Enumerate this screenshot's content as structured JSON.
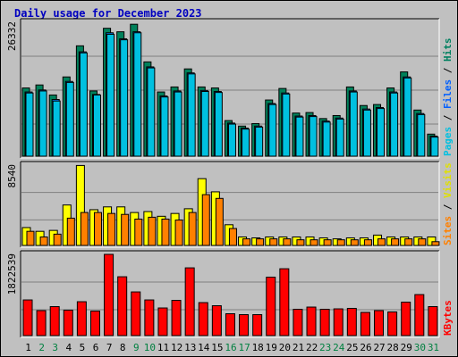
{
  "title": "Daily usage for December 2023",
  "colors": {
    "background": "#c0c0c0",
    "panel": "#c0c0c0",
    "title": "#0000c0",
    "pages": "#00c0e0",
    "files": "#0080ff",
    "hits": "#00805a",
    "visits": "#ffff00",
    "sites": "#ff8000",
    "kbytes": "#ff0000",
    "label_pages": "#00c0e0",
    "label_files": "#0060ff",
    "label_hits": "#008060",
    "label_sites": "#ff8000",
    "label_visits": "#e0e000",
    "label_kbytes": "#ff0000",
    "day_weekday": "#000000",
    "day_weekend": "#008040"
  },
  "chart_data": [
    {
      "type": "bar",
      "panel": "hits",
      "categories": [
        "1",
        "2",
        "3",
        "4",
        "5",
        "6",
        "7",
        "8",
        "9",
        "10",
        "11",
        "12",
        "13",
        "14",
        "15",
        "16",
        "17",
        "18",
        "19",
        "20",
        "21",
        "22",
        "23",
        "24",
        "25",
        "26",
        "27",
        "28",
        "29",
        "30",
        "31"
      ],
      "weekend_days": [
        "2",
        "3",
        "9",
        "10",
        "16",
        "17",
        "23",
        "24",
        "30",
        "31"
      ],
      "ymax_label": "26332",
      "ymax": 26332,
      "legend": [
        "Pages",
        "Files",
        "Hits"
      ],
      "series": [
        {
          "name": "Hits",
          "values": [
            13600,
            14200,
            12200,
            15800,
            22000,
            13000,
            25500,
            24800,
            26300,
            18800,
            12800,
            13800,
            17400,
            13800,
            13600,
            7100,
            6000,
            6500,
            11200,
            13500,
            8600,
            8700,
            7500,
            8100,
            13800,
            10100,
            10300,
            13600,
            16800,
            9200,
            4400
          ]
        },
        {
          "name": "Files",
          "values": [
            12800,
            13200,
            11300,
            14900,
            20800,
            12300,
            24600,
            23400,
            24800,
            17800,
            12000,
            13000,
            16600,
            13100,
            12900,
            6600,
            5600,
            6000,
            10500,
            12600,
            8000,
            8100,
            7000,
            7600,
            13000,
            9400,
            9700,
            12800,
            15800,
            8500,
            4000
          ]
        },
        {
          "name": "Pages",
          "values": [
            12600,
            13000,
            11000,
            14700,
            20600,
            12200,
            24300,
            23200,
            24600,
            17600,
            11800,
            12800,
            16400,
            12900,
            12700,
            6400,
            5400,
            5800,
            10300,
            12400,
            7800,
            7900,
            6800,
            7400,
            12800,
            9200,
            9500,
            12600,
            15600,
            8300,
            3800
          ]
        }
      ]
    },
    {
      "type": "bar",
      "panel": "visits",
      "categories": [
        "1",
        "2",
        "3",
        "4",
        "5",
        "6",
        "7",
        "8",
        "9",
        "10",
        "11",
        "12",
        "13",
        "14",
        "15",
        "16",
        "17",
        "18",
        "19",
        "20",
        "21",
        "22",
        "23",
        "24",
        "25",
        "26",
        "27",
        "28",
        "29",
        "30",
        "31"
      ],
      "ymax_label": "8540",
      "ymax": 8540,
      "legend": [
        "Sites",
        "Visits"
      ],
      "series": [
        {
          "name": "Visits",
          "values": [
            1900,
            1500,
            1600,
            4300,
            8500,
            3800,
            4100,
            4100,
            3500,
            3600,
            3100,
            3400,
            3900,
            7100,
            5700,
            2200,
            900,
            800,
            900,
            900,
            900,
            900,
            800,
            700,
            800,
            800,
            1100,
            900,
            900,
            900,
            900
          ]
        },
        {
          "name": "Sites",
          "values": [
            1500,
            900,
            1200,
            2900,
            3500,
            3500,
            3400,
            3300,
            2800,
            3000,
            2800,
            2700,
            3500,
            5400,
            5000,
            1800,
            700,
            700,
            700,
            700,
            600,
            600,
            600,
            600,
            600,
            600,
            700,
            700,
            700,
            700,
            400
          ]
        }
      ]
    },
    {
      "type": "bar",
      "panel": "kbytes",
      "categories": [
        "1",
        "2",
        "3",
        "4",
        "5",
        "6",
        "7",
        "8",
        "9",
        "10",
        "11",
        "12",
        "13",
        "14",
        "15",
        "16",
        "17",
        "18",
        "19",
        "20",
        "21",
        "22",
        "23",
        "24",
        "25",
        "26",
        "27",
        "28",
        "29",
        "30",
        "31"
      ],
      "ymax_label": "1822539",
      "ymax": 1822539,
      "legend": [
        "KBytes"
      ],
      "series": [
        {
          "name": "KBytes",
          "values": [
            800000,
            560000,
            650000,
            570000,
            760000,
            550000,
            1822539,
            1320000,
            980000,
            800000,
            620000,
            790000,
            1520000,
            740000,
            670000,
            490000,
            470000,
            470000,
            1310000,
            1500000,
            590000,
            640000,
            590000,
            600000,
            610000,
            520000,
            560000,
            530000,
            750000,
            920000,
            650000
          ]
        }
      ]
    }
  ]
}
